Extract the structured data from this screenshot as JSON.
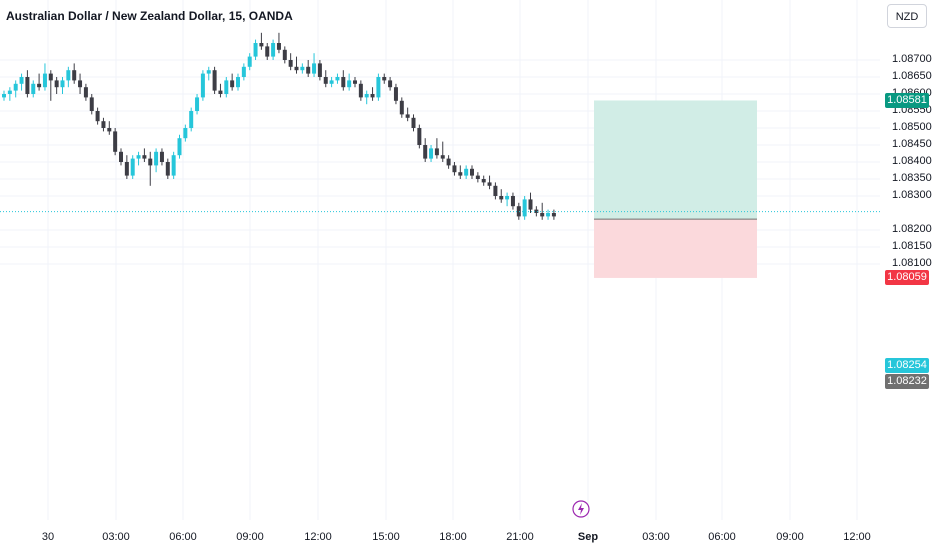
{
  "header": {
    "title": "Australian Dollar / New Zealand Dollar, 15, OANDA"
  },
  "price_scale": {
    "currency": "NZD",
    "labels": [
      "1.08700",
      "1.08650",
      "1.08600",
      "1.08550",
      "1.08500",
      "1.08450",
      "1.08400",
      "1.08350",
      "1.08300",
      "1.08200",
      "1.08150",
      "1.08100"
    ]
  },
  "price_tags": {
    "take_profit": "1.08581",
    "current": "1.08254",
    "entry": "1.08232",
    "stop_loss": "1.08059"
  },
  "time_axis": {
    "labels": [
      "30",
      "03:00",
      "06:00",
      "09:00",
      "12:00",
      "15:00",
      "18:00",
      "21:00",
      "Sep",
      "03:00",
      "06:00",
      "09:00",
      "12:00"
    ]
  },
  "colors": {
    "up": "#26c6da",
    "down": "#3d3d45",
    "profit_zone": "#d1ede6",
    "loss_zone": "#fbd9dc",
    "tp_tag": "#089981",
    "current_tag": "#26c6da",
    "entry_tag": "#707070",
    "sl_tag": "#f23645",
    "alert": "#9c27b0"
  },
  "chart_data": {
    "type": "candlestick",
    "y_unit": "price",
    "ylim": [
      1.0805,
      1.0878
    ],
    "candles": [
      [
        1.0859,
        1.0861,
        1.0858,
        1.086
      ],
      [
        1.086,
        1.0862,
        1.0858,
        1.0861
      ],
      [
        1.0861,
        1.0864,
        1.0859,
        1.0863
      ],
      [
        1.0863,
        1.0866,
        1.0861,
        1.0865
      ],
      [
        1.0865,
        1.0867,
        1.0859,
        1.086
      ],
      [
        1.086,
        1.0864,
        1.0859,
        1.0863
      ],
      [
        1.0863,
        1.0866,
        1.0861,
        1.0862
      ],
      [
        1.0862,
        1.0869,
        1.0861,
        1.0866
      ],
      [
        1.0866,
        1.0867,
        1.0858,
        1.0864
      ],
      [
        1.0864,
        1.0865,
        1.086,
        1.0862
      ],
      [
        1.0862,
        1.0865,
        1.086,
        1.0864
      ],
      [
        1.0864,
        1.0868,
        1.0862,
        1.0867
      ],
      [
        1.0867,
        1.0869,
        1.0863,
        1.0864
      ],
      [
        1.0864,
        1.0866,
        1.086,
        1.0862
      ],
      [
        1.0862,
        1.0863,
        1.0858,
        1.0859
      ],
      [
        1.0859,
        1.086,
        1.0854,
        1.0855
      ],
      [
        1.0855,
        1.0856,
        1.0851,
        1.0852
      ],
      [
        1.0852,
        1.0853,
        1.0849,
        1.085
      ],
      [
        1.085,
        1.0852,
        1.0848,
        1.0849
      ],
      [
        1.0849,
        1.085,
        1.0842,
        1.0843
      ],
      [
        1.0843,
        1.0844,
        1.0839,
        1.084
      ],
      [
        1.084,
        1.0842,
        1.0835,
        1.0836
      ],
      [
        1.0836,
        1.0842,
        1.0835,
        1.0841
      ],
      [
        1.0841,
        1.0843,
        1.0839,
        1.0842
      ],
      [
        1.0842,
        1.0844,
        1.084,
        1.0841
      ],
      [
        1.0841,
        1.0843,
        1.0833,
        1.0839
      ],
      [
        1.0839,
        1.0844,
        1.0837,
        1.0843
      ],
      [
        1.0843,
        1.0844,
        1.0839,
        1.084
      ],
      [
        1.084,
        1.0841,
        1.0835,
        1.0836
      ],
      [
        1.0836,
        1.0843,
        1.0835,
        1.0842
      ],
      [
        1.0842,
        1.0848,
        1.0841,
        1.0847
      ],
      [
        1.0847,
        1.0851,
        1.0846,
        1.085
      ],
      [
        1.085,
        1.0856,
        1.0849,
        1.0855
      ],
      [
        1.0855,
        1.086,
        1.0854,
        1.0859
      ],
      [
        1.0859,
        1.0867,
        1.0858,
        1.0866
      ],
      [
        1.0866,
        1.0868,
        1.0864,
        1.0867
      ],
      [
        1.0867,
        1.0868,
        1.086,
        1.0861
      ],
      [
        1.0861,
        1.0863,
        1.0859,
        1.086
      ],
      [
        1.086,
        1.0865,
        1.0859,
        1.0864
      ],
      [
        1.0864,
        1.0866,
        1.0861,
        1.0862
      ],
      [
        1.0862,
        1.0866,
        1.0861,
        1.0865
      ],
      [
        1.0865,
        1.0869,
        1.0864,
        1.0868
      ],
      [
        1.0868,
        1.0872,
        1.0867,
        1.0871
      ],
      [
        1.0871,
        1.0876,
        1.087,
        1.0875
      ],
      [
        1.0875,
        1.0878,
        1.0873,
        1.0874
      ],
      [
        1.0874,
        1.0875,
        1.087,
        1.0871
      ],
      [
        1.0871,
        1.0876,
        1.087,
        1.0875
      ],
      [
        1.0875,
        1.0878,
        1.0872,
        1.0873
      ],
      [
        1.0873,
        1.0874,
        1.0869,
        1.087
      ],
      [
        1.087,
        1.0872,
        1.0867,
        1.0868
      ],
      [
        1.0868,
        1.0871,
        1.0866,
        1.0867
      ],
      [
        1.0867,
        1.0869,
        1.0866,
        1.0868
      ],
      [
        1.0868,
        1.087,
        1.0865,
        1.0866
      ],
      [
        1.0866,
        1.0872,
        1.0865,
        1.0869
      ],
      [
        1.0869,
        1.087,
        1.0864,
        1.0865
      ],
      [
        1.0865,
        1.0867,
        1.0862,
        1.0863
      ],
      [
        1.0863,
        1.0865,
        1.0862,
        1.0864
      ],
      [
        1.0864,
        1.0866,
        1.0863,
        1.0865
      ],
      [
        1.0865,
        1.0867,
        1.0861,
        1.0862
      ],
      [
        1.0862,
        1.0866,
        1.0861,
        1.0864
      ],
      [
        1.0864,
        1.0865,
        1.0862,
        1.0863
      ],
      [
        1.0863,
        1.0864,
        1.0858,
        1.0859
      ],
      [
        1.0859,
        1.0861,
        1.0857,
        1.086
      ],
      [
        1.086,
        1.0862,
        1.0858,
        1.0859
      ],
      [
        1.0859,
        1.0866,
        1.0858,
        1.0865
      ],
      [
        1.0865,
        1.0866,
        1.0863,
        1.0864
      ],
      [
        1.0864,
        1.0865,
        1.0861,
        1.0862
      ],
      [
        1.0862,
        1.0863,
        1.0857,
        1.0858
      ],
      [
        1.0858,
        1.0859,
        1.0853,
        1.0854
      ],
      [
        1.0854,
        1.0856,
        1.0852,
        1.0853
      ],
      [
        1.0853,
        1.0854,
        1.0849,
        1.085
      ],
      [
        1.085,
        1.0851,
        1.0844,
        1.0845
      ],
      [
        1.0845,
        1.0847,
        1.084,
        1.0841
      ],
      [
        1.0841,
        1.0845,
        1.084,
        1.0844
      ],
      [
        1.0844,
        1.0847,
        1.0841,
        1.0842
      ],
      [
        1.0842,
        1.0846,
        1.084,
        1.0841
      ],
      [
        1.0841,
        1.0842,
        1.0838,
        1.0839
      ],
      [
        1.0839,
        1.084,
        1.0836,
        1.0837
      ],
      [
        1.0837,
        1.0839,
        1.0835,
        1.0836
      ],
      [
        1.0836,
        1.0839,
        1.0835,
        1.0838
      ],
      [
        1.0838,
        1.0839,
        1.0835,
        1.0836
      ],
      [
        1.0836,
        1.0837,
        1.0834,
        1.0835
      ],
      [
        1.0835,
        1.0836,
        1.0833,
        1.0834
      ],
      [
        1.0834,
        1.0836,
        1.0832,
        1.0833
      ],
      [
        1.0833,
        1.0834,
        1.0829,
        1.083
      ],
      [
        1.083,
        1.0832,
        1.0828,
        1.0829
      ],
      [
        1.0829,
        1.0831,
        1.0827,
        1.083
      ],
      [
        1.083,
        1.0831,
        1.0826,
        1.0827
      ],
      [
        1.0827,
        1.0828,
        1.0823,
        1.0824
      ],
      [
        1.0824,
        1.083,
        1.0823,
        1.0829
      ],
      [
        1.0829,
        1.0831,
        1.0825,
        1.0826
      ],
      [
        1.0826,
        1.0827,
        1.0824,
        1.0825
      ],
      [
        1.0825,
        1.0828,
        1.0823,
        1.0824
      ],
      [
        1.0824,
        1.0826,
        1.0823,
        1.0825
      ],
      [
        1.0825,
        1.0826,
        1.0823,
        1.0824
      ]
    ],
    "position": {
      "side": "long",
      "entry": 1.08232,
      "take_profit": 1.08581,
      "stop_loss": 1.08059,
      "current": 1.08254
    }
  }
}
